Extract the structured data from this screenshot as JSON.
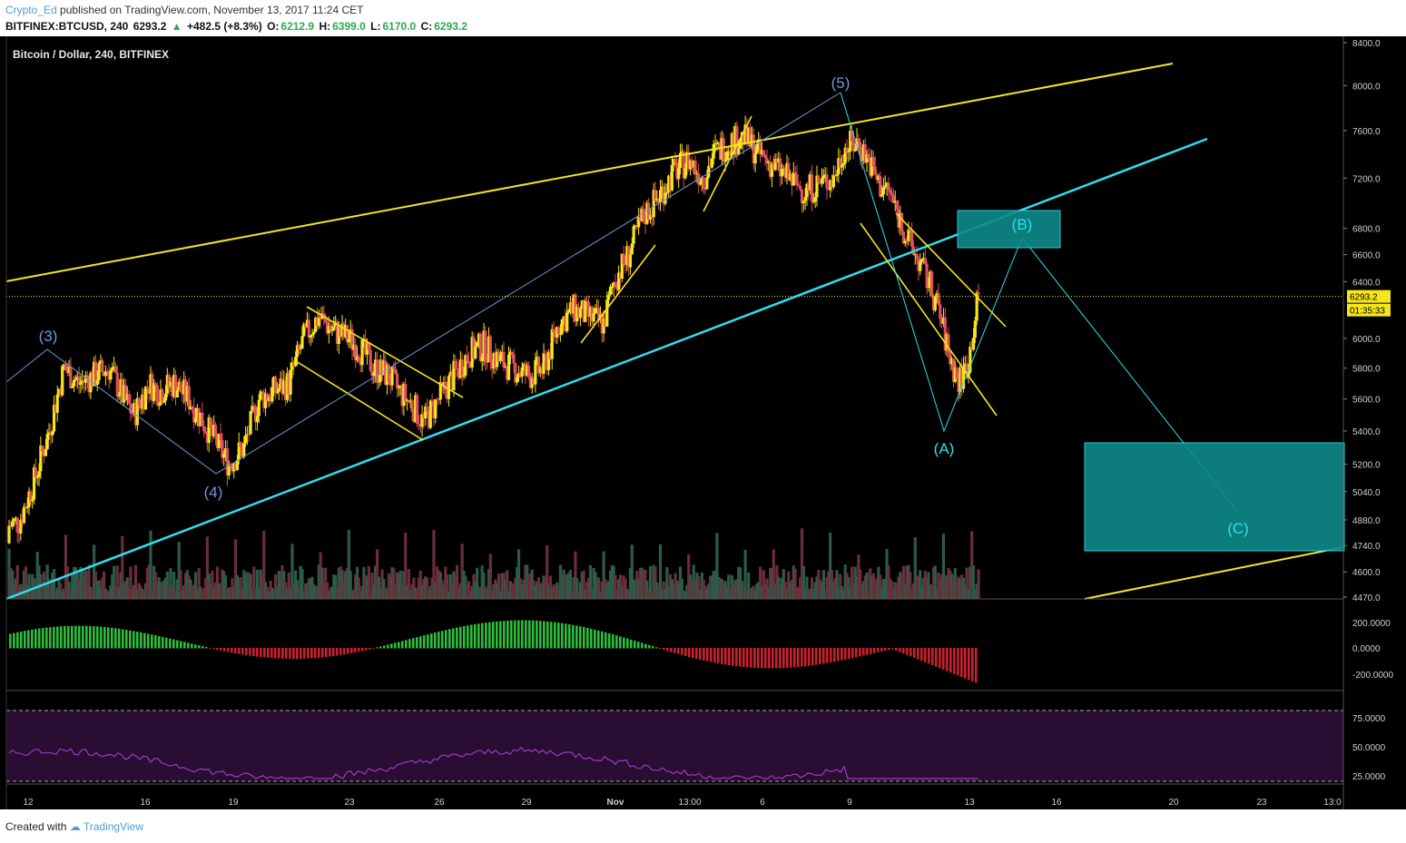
{
  "header": {
    "author": "Crypto_Ed",
    "published": "published on TradingView.com, November 13, 2017 11:24 CET",
    "symbol": "BITFINEX:BTCUSD, 240",
    "last": "6293.2",
    "change": "+482.5 (+8.3%)",
    "o_label": "O:",
    "o_val": "6212.9",
    "h_label": "H:",
    "h_val": "6399.0",
    "l_label": "L:",
    "l_val": "6170.0",
    "c_label": "C:",
    "c_val": "6293.2"
  },
  "chart_data": {
    "type": "candlestick",
    "title": "Bitcoin / Dollar, 240, BITFINEX",
    "price_axis": {
      "ticks": [
        8400,
        8000,
        7600,
        7200,
        6800,
        6600,
        6400,
        6000,
        5800,
        5600,
        5400,
        5200,
        5040,
        4880,
        4740,
        4600,
        4470
      ],
      "labels": [
        "8400.0",
        "8000.0",
        "7600.0",
        "7200.0",
        "6800.0",
        "6600.0",
        "6400.0",
        "6000.0",
        "5800.0",
        "5600.0",
        "5400.0",
        "5200.0",
        "5040.0",
        "4880.0",
        "4740.0",
        "4600.0",
        "4470.0"
      ],
      "scale": "log",
      "range": [
        4470,
        8400
      ]
    },
    "last_price": {
      "label": "6293.2",
      "countdown": "01:35:33",
      "value": 6293.2
    },
    "x_axis": {
      "labels": [
        "12",
        "16",
        "19",
        "23",
        "26",
        "29",
        "Nov",
        "13:00",
        "6",
        "9",
        "13",
        "16",
        "20",
        "23",
        "13:0"
      ]
    },
    "close_path": [
      [
        0,
        4850
      ],
      [
        2,
        4870
      ],
      [
        5,
        5100
      ],
      [
        8,
        5400
      ],
      [
        11,
        5800
      ],
      [
        14,
        5700
      ],
      [
        17,
        5750
      ],
      [
        20,
        5800
      ],
      [
        23,
        5600
      ],
      [
        25,
        5500
      ],
      [
        28,
        5700
      ],
      [
        30,
        5650
      ],
      [
        33,
        5700
      ],
      [
        36,
        5600
      ],
      [
        38,
        5500
      ],
      [
        41,
        5350
      ],
      [
        44,
        5200
      ],
      [
        47,
        5300
      ],
      [
        50,
        5600
      ],
      [
        53,
        5650
      ],
      [
        56,
        5700
      ],
      [
        59,
        6000
      ],
      [
        62,
        6150
      ],
      [
        65,
        6050
      ],
      [
        68,
        6000
      ],
      [
        71,
        5900
      ],
      [
        73,
        5800
      ],
      [
        76,
        5750
      ],
      [
        78,
        5650
      ],
      [
        81,
        5550
      ],
      [
        83,
        5450
      ],
      [
        86,
        5600
      ],
      [
        89,
        5750
      ],
      [
        92,
        5900
      ],
      [
        95,
        5950
      ],
      [
        98,
        5850
      ],
      [
        101,
        5800
      ],
      [
        104,
        5750
      ],
      [
        107,
        5800
      ],
      [
        110,
        6100
      ],
      [
        113,
        6200
      ],
      [
        116,
        6150
      ],
      [
        119,
        6100
      ],
      [
        121,
        6400
      ],
      [
        124,
        6600
      ],
      [
        127,
        6900
      ],
      [
        130,
        7050
      ],
      [
        133,
        7250
      ],
      [
        136,
        7350
      ],
      [
        139,
        7200
      ],
      [
        141,
        7400
      ],
      [
        144,
        7500
      ],
      [
        147,
        7550
      ],
      [
        150,
        7400
      ],
      [
        153,
        7300
      ],
      [
        156,
        7200
      ],
      [
        159,
        7100
      ],
      [
        162,
        7150
      ],
      [
        165,
        7200
      ],
      [
        167,
        7450
      ],
      [
        170,
        7500
      ],
      [
        172,
        7350
      ],
      [
        174,
        7150
      ],
      [
        176,
        7100
      ],
      [
        178,
        6900
      ],
      [
        180,
        6700
      ],
      [
        182,
        6550
      ],
      [
        184,
        6400
      ],
      [
        186,
        6200
      ],
      [
        188,
        5900
      ],
      [
        190,
        5700
      ],
      [
        192,
        5850
      ],
      [
        194,
        6300
      ]
    ],
    "volume_note": "volume histogram bars below price",
    "macd_axis": {
      "labels": [
        "200.0000",
        "0.0000",
        "-200.0000"
      ]
    },
    "rsi_axis": {
      "labels": [
        "75.0000",
        "50.0000",
        "25.0000"
      ]
    },
    "wave_labels": [
      "(3)",
      "(4)",
      "(5)",
      "(A)",
      "(B)",
      "(C)"
    ],
    "colors": {
      "up": "#f5e61c",
      "down": "#e0505e",
      "channel_yellow": "#f5e61c",
      "channel_cyan": "#2ee0ee",
      "wave_blue": "#6a9bd8",
      "target_box": "#0e8a8a",
      "macd_up": "#2dbd3a",
      "macd_down": "#c8202e",
      "rsi_line": "#9b3cc0",
      "rsi_band": "#2a0d33",
      "volume_up": "#2d5a48",
      "volume_down": "#6a2e3a"
    }
  },
  "footer": {
    "created": "Created with",
    "brand": "TradingView"
  }
}
